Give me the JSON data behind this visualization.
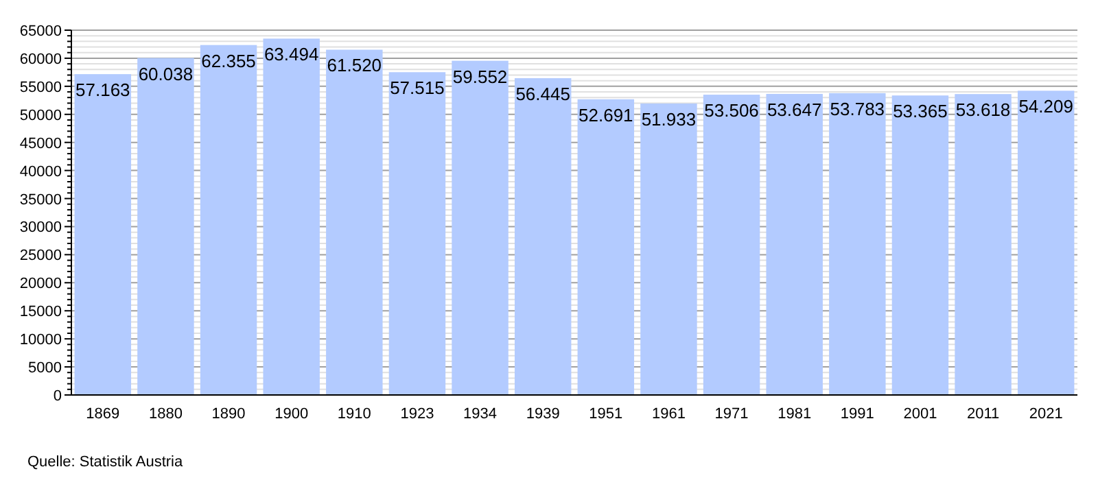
{
  "chart_data": {
    "type": "bar",
    "categories": [
      "1869",
      "1880",
      "1890",
      "1900",
      "1910",
      "1923",
      "1934",
      "1939",
      "1951",
      "1961",
      "1971",
      "1981",
      "1991",
      "2001",
      "2011",
      "2021"
    ],
    "values": [
      57163,
      60038,
      62355,
      63494,
      61520,
      57515,
      59552,
      56445,
      52691,
      51933,
      53506,
      53647,
      53783,
      53365,
      53618,
      54209
    ],
    "value_labels": [
      "57.163",
      "60.038",
      "62.355",
      "63.494",
      "61.520",
      "57.515",
      "59.552",
      "56.445",
      "52.691",
      "51.933",
      "53.506",
      "53.647",
      "53.783",
      "53.365",
      "53.618",
      "54.209"
    ],
    "color": "#b3cbff",
    "ylim": [
      0,
      65000
    ],
    "yticks": [
      0,
      {
        "value": 1000,
        "label": null
      },
      {
        "value": 2000,
        "label": null
      },
      {
        "value": 3000,
        "label": null
      },
      {
        "value": 4000,
        "label": null
      },
      5000,
      {
        "value": 6000,
        "label": null
      },
      {
        "value": 7000,
        "label": null
      },
      {
        "value": 8000,
        "label": null
      },
      {
        "value": 9000,
        "label": null
      },
      10000,
      {
        "value": 11000,
        "label": null
      },
      {
        "value": 12000,
        "label": null
      },
      {
        "value": 13000,
        "label": null
      },
      {
        "value": 14000,
        "label": null
      },
      15000,
      {
        "value": 16000,
        "label": null
      },
      {
        "value": 17000,
        "label": null
      },
      {
        "value": 18000,
        "label": null
      },
      {
        "value": 19000,
        "label": null
      },
      20000,
      {
        "value": 21000,
        "label": null
      },
      {
        "value": 22000,
        "label": null
      },
      {
        "value": 23000,
        "label": null
      },
      {
        "value": 24000,
        "label": null
      },
      25000,
      {
        "value": 26000,
        "label": null
      },
      {
        "value": 27000,
        "label": null
      },
      {
        "value": 28000,
        "label": null
      },
      {
        "value": 29000,
        "label": null
      },
      30000,
      {
        "value": 31000,
        "label": null
      },
      {
        "value": 32000,
        "label": null
      },
      {
        "value": 33000,
        "label": null
      },
      {
        "value": 34000,
        "label": null
      },
      35000,
      {
        "value": 36000,
        "label": null
      },
      {
        "value": 37000,
        "label": null
      },
      {
        "value": 38000,
        "label": null
      },
      {
        "value": 39000,
        "label": null
      },
      40000,
      {
        "value": 41000,
        "label": null
      },
      {
        "value": 42000,
        "label": null
      },
      {
        "value": 43000,
        "label": null
      },
      {
        "value": 44000,
        "label": null
      },
      45000,
      {
        "value": 46000,
        "label": null
      },
      {
        "value": 47000,
        "label": null
      },
      {
        "value": 48000,
        "label": null
      },
      {
        "value": 49000,
        "label": null
      },
      50000,
      {
        "value": 51000,
        "label": null
      },
      {
        "value": 52000,
        "label": null
      },
      {
        "value": 53000,
        "label": null
      },
      {
        "value": 54000,
        "label": null
      },
      55000,
      {
        "value": 56000,
        "label": null
      },
      {
        "value": 57000,
        "label": null
      },
      {
        "value": 58000,
        "label": null
      },
      {
        "value": 59000,
        "label": null
      },
      60000,
      {
        "value": 61000,
        "label": null
      },
      {
        "value": 62000,
        "label": null
      },
      {
        "value": 63000,
        "label": null
      },
      {
        "value": 64000,
        "label": null
      },
      65000
    ],
    "grid": "y",
    "annotations": [
      "Quelle: Statistik Austria"
    ]
  }
}
